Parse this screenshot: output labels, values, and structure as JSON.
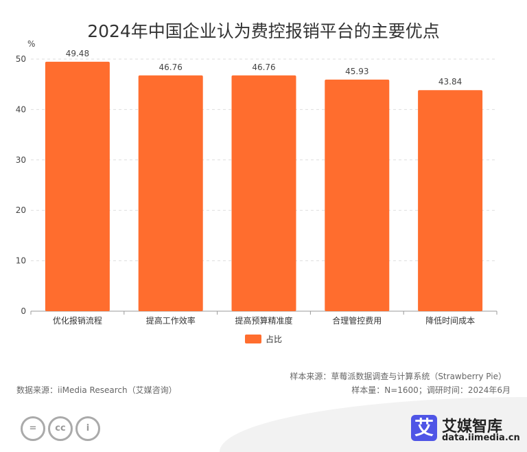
{
  "chart_data": {
    "type": "bar",
    "title": "2024年中国企业认为费控报销平台的主要优点",
    "ylabel": "%",
    "ylim": [
      0,
      50
    ],
    "yticks": [
      0,
      10,
      20,
      30,
      40,
      50
    ],
    "grid": true,
    "legend_position": "bottom",
    "categories": [
      "优化报销流程",
      "提高工作效率",
      "提高预算精准度",
      "合理管控费用",
      "降低时间成本"
    ],
    "series": [
      {
        "name": "占比",
        "values": [
          49.48,
          46.76,
          46.76,
          45.93,
          43.84
        ],
        "color": "#ff6d2e"
      }
    ]
  },
  "footer": {
    "sample_source": "样本来源：草莓派数据调查与计算系统（Strawberry Pie）",
    "data_source": "数据来源：iiMedia Research（艾媒咨询）",
    "sample_size": "样本量：N=1600；调研时间：2024年6月",
    "cc_icons": [
      "=",
      "cc",
      "i"
    ],
    "logo_char": "艾",
    "brand": "艾媒智库",
    "url": "data.iimedia.cn"
  }
}
